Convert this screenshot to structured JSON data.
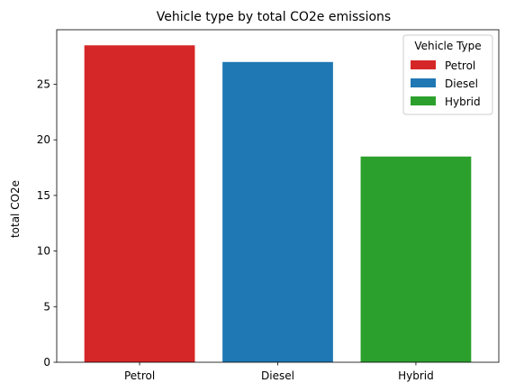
{
  "chart_data": {
    "type": "bar",
    "title": "Vehicle type by total CO2e emissions",
    "xlabel": "",
    "ylabel": "total CO2e",
    "categories": [
      "Petrol",
      "Diesel",
      "Hybrid"
    ],
    "values": [
      28.5,
      27.0,
      18.5
    ],
    "colors": [
      "#d62728",
      "#1f77b4",
      "#2ca02c"
    ],
    "ylim": [
      0,
      29.9
    ],
    "yticks": [
      0,
      5,
      10,
      15,
      20,
      25
    ],
    "grid": false,
    "legend": {
      "title": "Vehicle Type",
      "placement": "top-right",
      "entries": [
        "Petrol",
        "Diesel",
        "Hybrid"
      ]
    }
  }
}
